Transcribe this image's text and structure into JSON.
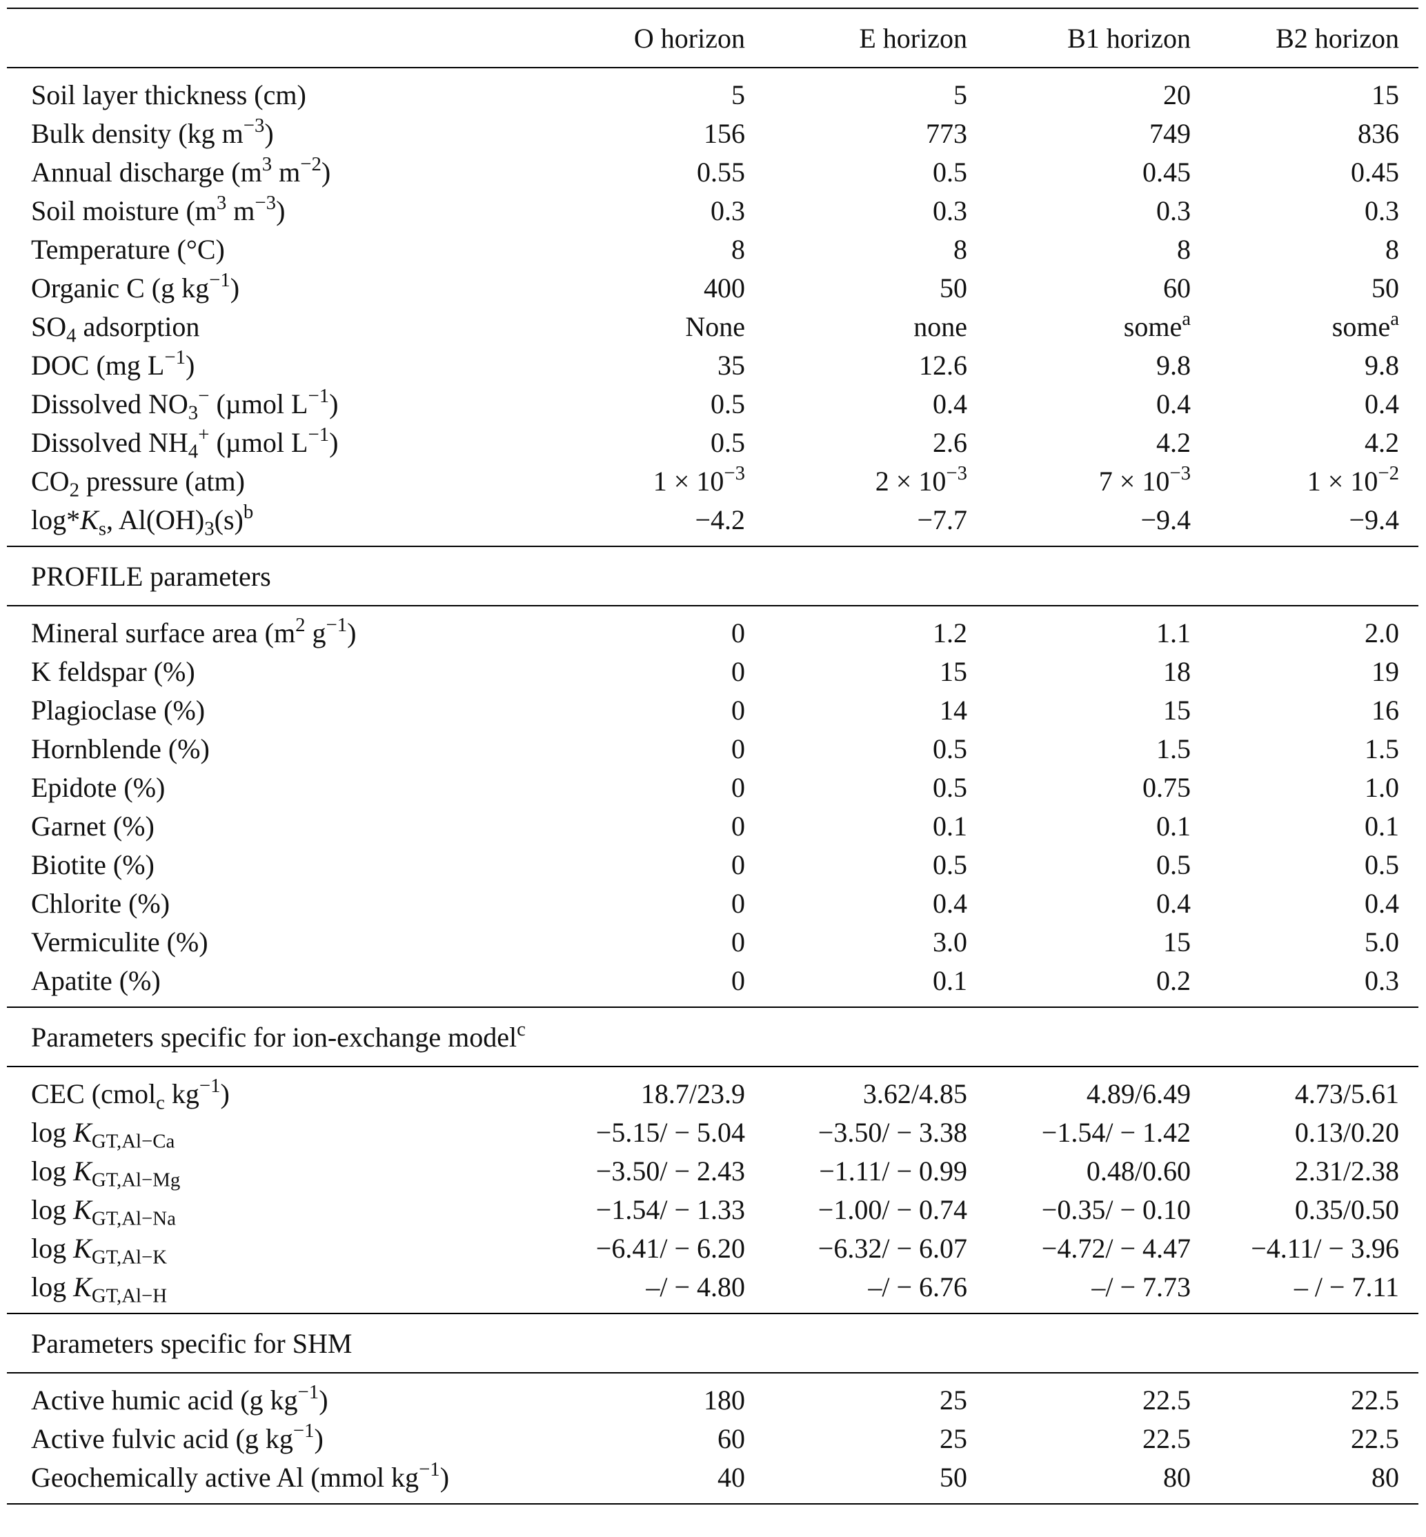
{
  "table": {
    "columns": [
      "O horizon",
      "E horizon",
      "B1 horizon",
      "B2 horizon"
    ],
    "sections": [
      {
        "rows": [
          {
            "label": [
              "Soil layer thickness (cm)"
            ],
            "cells": [
              "5",
              "5",
              "20",
              "15"
            ]
          },
          {
            "label": [
              "Bulk density (kg m",
              {
                "sup": "−3"
              },
              ")"
            ],
            "cells": [
              "156",
              "773",
              "749",
              "836"
            ]
          },
          {
            "label": [
              "Annual discharge (m",
              {
                "sup": "3"
              },
              " m",
              {
                "sup": "−2"
              },
              ")"
            ],
            "cells": [
              "0.55",
              "0.5",
              "0.45",
              "0.45"
            ]
          },
          {
            "label": [
              "Soil moisture (m",
              {
                "sup": "3"
              },
              " m",
              {
                "sup": "−3"
              },
              ")"
            ],
            "cells": [
              "0.3",
              "0.3",
              "0.3",
              "0.3"
            ]
          },
          {
            "label": [
              "Temperature (°C)"
            ],
            "cells": [
              "8",
              "8",
              "8",
              "8"
            ]
          },
          {
            "label": [
              "Organic C (g kg",
              {
                "sup": "−1"
              },
              ")"
            ],
            "cells": [
              "400",
              "50",
              "60",
              "50"
            ]
          },
          {
            "label": [
              "SO",
              {
                "sub": "4"
              },
              " adsorption"
            ],
            "cells": [
              "None",
              "none",
              [
                "some",
                {
                  "sup": "a"
                }
              ],
              [
                "some",
                {
                  "sup": "a"
                }
              ]
            ]
          },
          {
            "label": [
              "DOC (mg L",
              {
                "sup": "−1"
              },
              ")"
            ],
            "cells": [
              "35",
              "12.6",
              "9.8",
              "9.8"
            ]
          },
          {
            "label": [
              "Dissolved NO",
              {
                "sub": "3"
              },
              {
                "sup": "−"
              },
              " (µmol L",
              {
                "sup": "−1"
              },
              ")"
            ],
            "cells": [
              "0.5",
              "0.4",
              "0.4",
              "0.4"
            ]
          },
          {
            "label": [
              "Dissolved NH",
              {
                "sub": "4"
              },
              {
                "sup": "+"
              },
              " (µmol L",
              {
                "sup": "−1"
              },
              ")"
            ],
            "cells": [
              "0.5",
              "2.6",
              "4.2",
              "4.2"
            ]
          },
          {
            "label": [
              "CO",
              {
                "sub": "2"
              },
              " pressure (atm)"
            ],
            "cells": [
              [
                "1 × 10",
                {
                  "sup": "−3"
                }
              ],
              [
                "2 × 10",
                {
                  "sup": "−3"
                }
              ],
              [
                "7 × 10",
                {
                  "sup": "−3"
                }
              ],
              [
                "1 × 10",
                {
                  "sup": "−2"
                }
              ]
            ]
          },
          {
            "label": [
              "log*",
              {
                "i": "K"
              },
              {
                "sub": "s"
              },
              ", Al(OH)",
              {
                "sub": "3"
              },
              "(s)",
              {
                "sup": "b"
              }
            ],
            "cells": [
              "−4.2",
              "−7.7",
              "−9.4",
              "−9.4"
            ]
          }
        ]
      },
      {
        "title": [
          "PROFILE parameters"
        ],
        "rows": [
          {
            "label": [
              "Mineral surface area (m",
              {
                "sup": "2"
              },
              " g",
              {
                "sup": "−1"
              },
              ")"
            ],
            "cells": [
              "0",
              "1.2",
              "1.1",
              "2.0"
            ]
          },
          {
            "label": [
              "K feldspar (%)"
            ],
            "cells": [
              "0",
              "15",
              "18",
              "19"
            ]
          },
          {
            "label": [
              "Plagioclase (%)"
            ],
            "cells": [
              "0",
              "14",
              "15",
              "16"
            ]
          },
          {
            "label": [
              "Hornblende (%)"
            ],
            "cells": [
              "0",
              "0.5",
              "1.5",
              "1.5"
            ]
          },
          {
            "label": [
              "Epidote (%)"
            ],
            "cells": [
              "0",
              "0.5",
              "0.75",
              "1.0"
            ]
          },
          {
            "label": [
              "Garnet (%)"
            ],
            "cells": [
              "0",
              "0.1",
              "0.1",
              "0.1"
            ]
          },
          {
            "label": [
              "Biotite (%)"
            ],
            "cells": [
              "0",
              "0.5",
              "0.5",
              "0.5"
            ]
          },
          {
            "label": [
              "Chlorite (%)"
            ],
            "cells": [
              "0",
              "0.4",
              "0.4",
              "0.4"
            ]
          },
          {
            "label": [
              "Vermiculite (%)"
            ],
            "cells": [
              "0",
              "3.0",
              "15",
              "5.0"
            ]
          },
          {
            "label": [
              "Apatite (%)"
            ],
            "cells": [
              "0",
              "0.1",
              "0.2",
              "0.3"
            ]
          }
        ]
      },
      {
        "title": [
          "Parameters specific for ion-exchange model",
          {
            "sup": "c"
          }
        ],
        "rows": [
          {
            "label": [
              "CEC (cmol",
              {
                "sub": "c"
              },
              " kg",
              {
                "sup": "−1"
              },
              ")"
            ],
            "cells": [
              "18.7/23.9",
              "3.62/4.85",
              "4.89/6.49",
              "4.73/5.61"
            ]
          },
          {
            "label": [
              "log ",
              {
                "i": "K"
              },
              {
                "sub": "GT,Al−Ca"
              }
            ],
            "cells": [
              "−5.15/ − 5.04",
              "−3.50/ − 3.38",
              "−1.54/ − 1.42",
              "0.13/0.20"
            ]
          },
          {
            "label": [
              "log ",
              {
                "i": "K"
              },
              {
                "sub": "GT,Al−Mg"
              }
            ],
            "cells": [
              "−3.50/ − 2.43",
              "−1.11/ − 0.99",
              "0.48/0.60",
              "2.31/2.38"
            ]
          },
          {
            "label": [
              "log ",
              {
                "i": "K"
              },
              {
                "sub": "GT,Al−Na"
              }
            ],
            "cells": [
              "−1.54/ − 1.33",
              "−1.00/ − 0.74",
              "−0.35/ − 0.10",
              "0.35/0.50"
            ]
          },
          {
            "label": [
              "log ",
              {
                "i": "K"
              },
              {
                "sub": "GT,Al−K"
              }
            ],
            "cells": [
              "−6.41/ − 6.20",
              "−6.32/ − 6.07",
              "−4.72/ − 4.47",
              "−4.11/ − 3.96"
            ]
          },
          {
            "label": [
              "log ",
              {
                "i": "K"
              },
              {
                "sub": "GT,Al−H"
              }
            ],
            "cells": [
              "–/ − 4.80",
              "–/ − 6.76",
              "–/ − 7.73",
              "– / − 7.11"
            ]
          }
        ]
      },
      {
        "title": [
          "Parameters specific for SHM"
        ],
        "rows": [
          {
            "label": [
              "Active humic acid (g kg",
              {
                "sup": "−1"
              },
              ")"
            ],
            "cells": [
              "180",
              "25",
              "22.5",
              "22.5"
            ]
          },
          {
            "label": [
              "Active fulvic acid (g kg",
              {
                "sup": "−1"
              },
              ")"
            ],
            "cells": [
              "60",
              "25",
              "22.5",
              "22.5"
            ]
          },
          {
            "label": [
              "Geochemically active Al (mmol kg",
              {
                "sup": "−1"
              },
              ")"
            ],
            "cells": [
              "40",
              "50",
              "80",
              "80"
            ]
          }
        ]
      }
    ]
  }
}
